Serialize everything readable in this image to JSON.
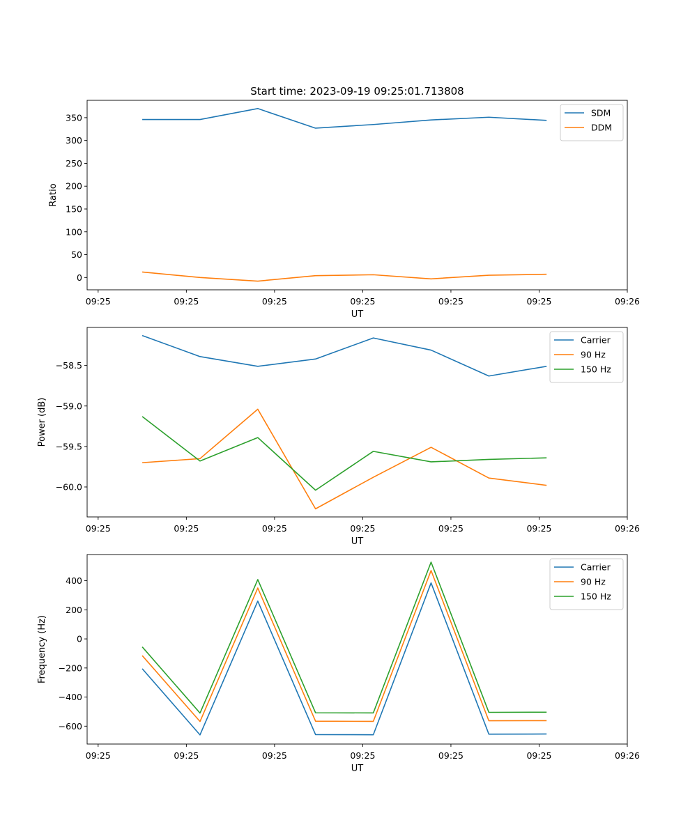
{
  "figure": {
    "title": "Start time: 2023-09-19 09:25:01.713808"
  },
  "chart_data": [
    {
      "type": "line",
      "title": "Start time: 2023-09-19 09:25:01.713808",
      "xlabel": "UT",
      "ylabel": "Ratio",
      "x_tick_labels": [
        "09:25",
        "09:25",
        "09:25",
        "09:25",
        "09:25",
        "09:25",
        "09:26"
      ],
      "x_tick_values": [
        0,
        2,
        4,
        6,
        8,
        10,
        12
      ],
      "xlim": [
        -0.25,
        12.0
      ],
      "x": [
        1,
        2.31,
        3.62,
        4.93,
        6.24,
        7.55,
        8.86,
        10.17
      ],
      "ylim": [
        -27,
        388
      ],
      "y_ticks": [
        0,
        50,
        100,
        150,
        200,
        250,
        300,
        350
      ],
      "legend": "top-right",
      "series": [
        {
          "name": "SDM",
          "color": "#1f77b4",
          "values": [
            346,
            346,
            370,
            327,
            335,
            345,
            351,
            344
          ]
        },
        {
          "name": "DDM",
          "color": "#ff7f0e",
          "values": [
            12,
            0,
            -8,
            4,
            6,
            -3,
            5,
            7
          ]
        }
      ]
    },
    {
      "type": "line",
      "title": "",
      "xlabel": "UT",
      "ylabel": "Power (dB)",
      "x_tick_labels": [
        "09:25",
        "09:25",
        "09:25",
        "09:25",
        "09:25",
        "09:25",
        "09:26"
      ],
      "x_tick_values": [
        0,
        2,
        4,
        6,
        8,
        10,
        12
      ],
      "xlim": [
        -0.25,
        12.0
      ],
      "x": [
        1,
        2.31,
        3.62,
        4.93,
        6.24,
        7.55,
        8.86,
        10.17
      ],
      "ylim": [
        -60.37,
        -58.03
      ],
      "y_ticks": [
        -60.0,
        -59.5,
        -59.0,
        -58.5
      ],
      "y_tick_labels": [
        "−60.0",
        "−59.5",
        "−59.0",
        "−58.5"
      ],
      "legend": "top-right",
      "series": [
        {
          "name": "Carrier",
          "color": "#1f77b4",
          "values": [
            -58.13,
            -58.39,
            -58.51,
            -58.42,
            -58.16,
            -58.31,
            -58.63,
            -58.51
          ]
        },
        {
          "name": "90 Hz",
          "color": "#ff7f0e",
          "values": [
            -59.7,
            -59.65,
            -59.04,
            -60.27,
            -59.88,
            -59.51,
            -59.89,
            -59.98
          ]
        },
        {
          "name": "150 Hz",
          "color": "#2ca02c",
          "values": [
            -59.13,
            -59.68,
            -59.39,
            -60.04,
            -59.56,
            -59.69,
            -59.66,
            -59.64
          ]
        }
      ]
    },
    {
      "type": "line",
      "title": "",
      "xlabel": "UT",
      "ylabel": "Frequency (Hz)",
      "x_tick_labels": [
        "09:25",
        "09:25",
        "09:25",
        "09:25",
        "09:25",
        "09:25",
        "09:26"
      ],
      "x_tick_values": [
        0,
        2,
        4,
        6,
        8,
        10,
        12
      ],
      "xlim": [
        -0.25,
        12.0
      ],
      "x": [
        1,
        2.31,
        3.62,
        4.93,
        6.24,
        7.55,
        8.86,
        10.17
      ],
      "ylim": [
        -723,
        580
      ],
      "y_ticks": [
        -600,
        -400,
        -200,
        0,
        200,
        400
      ],
      "y_tick_labels": [
        "−600",
        "−400",
        "−200",
        "0",
        "200",
        "400"
      ],
      "legend": "top-right",
      "series": [
        {
          "name": "Carrier",
          "color": "#1f77b4",
          "values": [
            -205,
            -660,
            260,
            -658,
            -659,
            385,
            -655,
            -654
          ]
        },
        {
          "name": "90 Hz",
          "color": "#ff7f0e",
          "values": [
            -115,
            -568,
            350,
            -566,
            -567,
            470,
            -563,
            -562
          ]
        },
        {
          "name": "150 Hz",
          "color": "#2ca02c",
          "values": [
            -55,
            -510,
            408,
            -508,
            -509,
            528,
            -505,
            -504
          ]
        }
      ]
    }
  ]
}
